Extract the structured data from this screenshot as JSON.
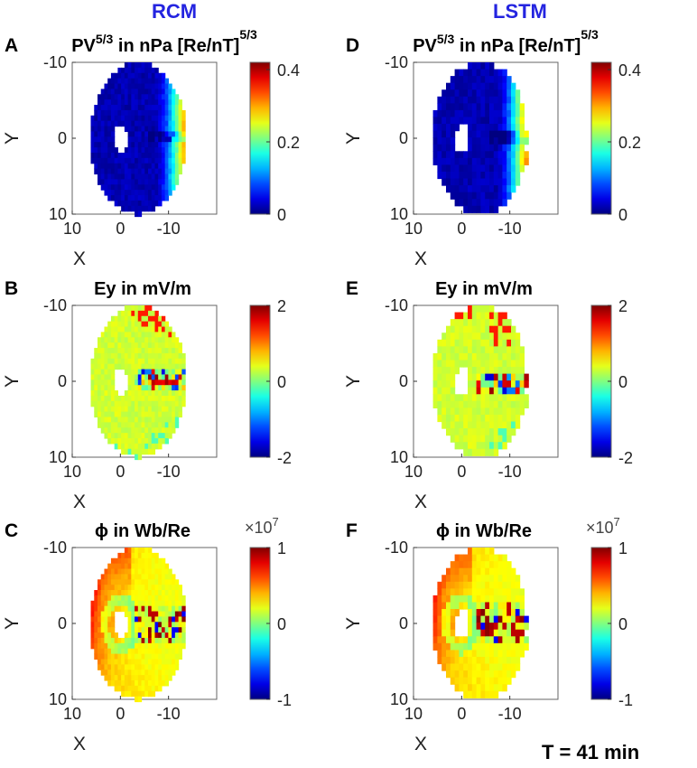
{
  "columns": [
    {
      "title": "RCM"
    },
    {
      "title": "LSTM"
    }
  ],
  "footer": "T = 41 min",
  "chart_data": [
    {
      "panel": "A",
      "model": "RCM",
      "type": "heatmap",
      "title_base": "PV",
      "title_sup": "5/3",
      "title_mid": " in nPa [Re/nT]",
      "title_sup2": "5/3",
      "xlabel": "X",
      "ylabel": "Y",
      "xticks": [
        "10",
        "0",
        "-10"
      ],
      "yticks": [
        "-10",
        "0",
        "10"
      ],
      "xlim": [
        10,
        -20
      ],
      "ylim": [
        -10,
        10
      ],
      "colorbar": {
        "min": 0,
        "max": 0.42,
        "ticks": [
          "0",
          "0.2",
          "0.4"
        ],
        "multiplier": ""
      },
      "field": "pv",
      "blocky": false
    },
    {
      "panel": "B",
      "model": "RCM",
      "type": "heatmap",
      "title_base": "Ey in mV/m",
      "title_sup": "",
      "title_mid": "",
      "title_sup2": "",
      "xlabel": "X",
      "ylabel": "Y",
      "xticks": [
        "10",
        "0",
        "-10"
      ],
      "yticks": [
        "-10",
        "0",
        "10"
      ],
      "xlim": [
        10,
        -20
      ],
      "ylim": [
        -10,
        10
      ],
      "colorbar": {
        "min": -2,
        "max": 2,
        "ticks": [
          "-2",
          "0",
          "2"
        ],
        "multiplier": ""
      },
      "field": "ey",
      "blocky": false
    },
    {
      "panel": "C",
      "model": "RCM",
      "type": "heatmap",
      "title_base": "ϕ in Wb/Re",
      "title_sup": "",
      "title_mid": "",
      "title_sup2": "",
      "xlabel": "X",
      "ylabel": "Y",
      "xticks": [
        "10",
        "0",
        "-10"
      ],
      "yticks": [
        "-10",
        "0",
        "10"
      ],
      "xlim": [
        10,
        -20
      ],
      "ylim": [
        -10,
        10
      ],
      "colorbar": {
        "min": -1,
        "max": 1,
        "ticks": [
          "-1",
          "0",
          "1"
        ],
        "multiplier": "×10",
        "multiplier_exp": "7"
      },
      "field": "phi",
      "blocky": false
    },
    {
      "panel": "D",
      "model": "LSTM",
      "type": "heatmap",
      "title_base": "PV",
      "title_sup": "5/3",
      "title_mid": " in nPa [Re/nT]",
      "title_sup2": "5/3",
      "xlabel": "X",
      "ylabel": "Y",
      "xticks": [
        "10",
        "0",
        "-10"
      ],
      "yticks": [
        "-10",
        "0",
        "10"
      ],
      "xlim": [
        10,
        -20
      ],
      "ylim": [
        -10,
        10
      ],
      "colorbar": {
        "min": 0,
        "max": 0.42,
        "ticks": [
          "0",
          "0.2",
          "0.4"
        ],
        "multiplier": ""
      },
      "field": "pv",
      "blocky": true
    },
    {
      "panel": "E",
      "model": "LSTM",
      "type": "heatmap",
      "title_base": "Ey in mV/m",
      "title_sup": "",
      "title_mid": "",
      "title_sup2": "",
      "xlabel": "X",
      "ylabel": "Y",
      "xticks": [
        "10",
        "0",
        "-10"
      ],
      "yticks": [
        "-10",
        "0",
        "10"
      ],
      "xlim": [
        10,
        -20
      ],
      "ylim": [
        -10,
        10
      ],
      "colorbar": {
        "min": -2,
        "max": 2,
        "ticks": [
          "-2",
          "0",
          "2"
        ],
        "multiplier": ""
      },
      "field": "ey",
      "blocky": true
    },
    {
      "panel": "F",
      "model": "LSTM",
      "type": "heatmap",
      "title_base": "ϕ in Wb/Re",
      "title_sup": "",
      "title_mid": "",
      "title_sup2": "",
      "xlabel": "X",
      "ylabel": "Y",
      "xticks": [
        "10",
        "0",
        "-10"
      ],
      "yticks": [
        "-10",
        "0",
        "10"
      ],
      "xlim": [
        10,
        -20
      ],
      "ylim": [
        -10,
        10
      ],
      "colorbar": {
        "min": -1,
        "max": 1,
        "ticks": [
          "-1",
          "0",
          "1"
        ],
        "multiplier": "×10",
        "multiplier_exp": "7"
      },
      "field": "phi",
      "blocky": true
    }
  ]
}
